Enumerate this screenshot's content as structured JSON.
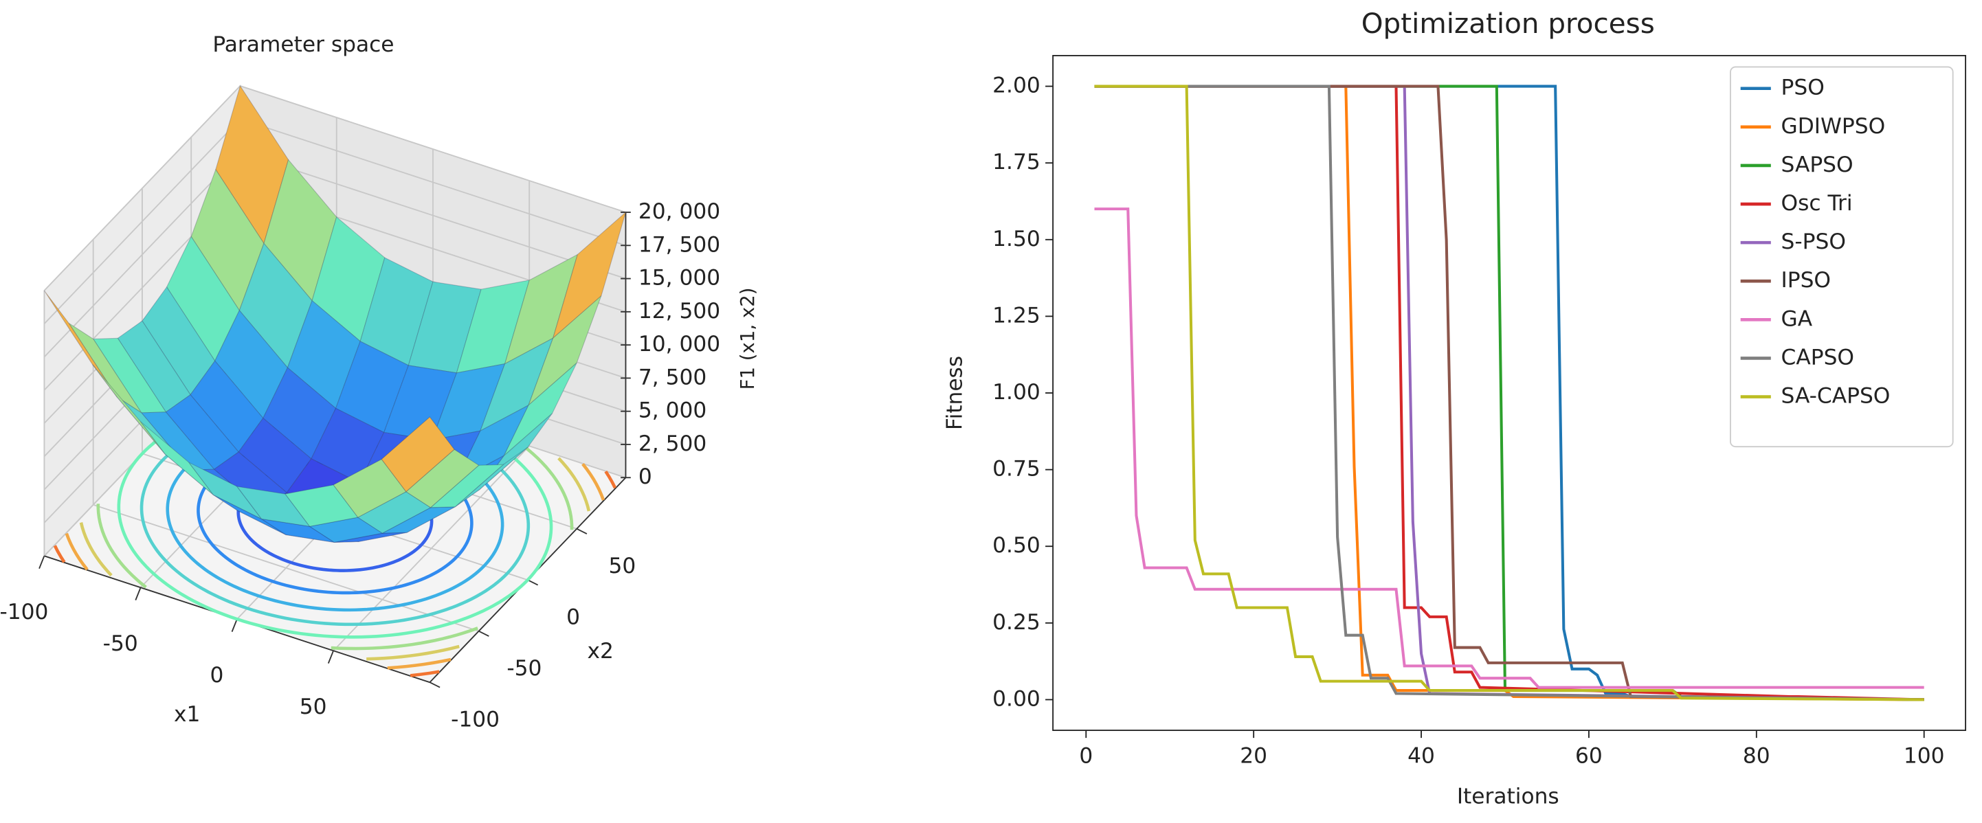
{
  "chart_data": [
    {
      "type": "surface",
      "title": "Parameter space",
      "xlabel": "x1",
      "ylabel": "x2",
      "zlabel": "F1 (x1, x2)",
      "x": [
        -100,
        -75,
        -50,
        -25,
        0,
        25,
        50,
        75,
        100
      ],
      "y": [
        -100,
        -75,
        -50,
        -25,
        0,
        25,
        50,
        75,
        100
      ],
      "z": [
        [
          20000,
          15625,
          12500,
          10625,
          10000,
          10625,
          12500,
          15625,
          20000
        ],
        [
          15625,
          11250,
          8125,
          6250,
          5625,
          6250,
          8125,
          11250,
          15625
        ],
        [
          12500,
          8125,
          5000,
          3125,
          2500,
          3125,
          5000,
          8125,
          12500
        ],
        [
          10625,
          6250,
          3125,
          1250,
          625,
          1250,
          3125,
          6250,
          10625
        ],
        [
          10000,
          5625,
          2500,
          625,
          0,
          625,
          2500,
          5625,
          10000
        ],
        [
          10625,
          6250,
          3125,
          1250,
          625,
          1250,
          3125,
          6250,
          10625
        ],
        [
          12500,
          8125,
          5000,
          3125,
          2500,
          3125,
          5000,
          8125,
          12500
        ],
        [
          15625,
          11250,
          8125,
          6250,
          5625,
          6250,
          8125,
          11250,
          15625
        ],
        [
          20000,
          15625,
          12500,
          10625,
          10000,
          10625,
          12500,
          15625,
          20000
        ]
      ],
      "contour_levels": [
        2000,
        4000,
        6000,
        8000,
        10000,
        12000,
        14000,
        16000,
        18000
      ],
      "xlim": [
        -100,
        100
      ],
      "ylim": [
        -100,
        100
      ],
      "zlim": [
        0,
        20000
      ],
      "xticks": [
        -100,
        -50,
        0,
        50
      ],
      "yticks": [
        -100,
        -50,
        0,
        50
      ],
      "zticks": [
        0,
        {
          "value": 2500,
          "label": "2, 500"
        },
        {
          "value": 5000,
          "label": "5, 000"
        },
        {
          "value": 7500,
          "label": "7, 500"
        },
        {
          "value": 10000,
          "label": "10, 000"
        },
        {
          "value": 12500,
          "label": "12, 500"
        },
        {
          "value": 15000,
          "label": "15, 000"
        },
        {
          "value": 17500,
          "label": "17, 500"
        },
        {
          "value": 20000,
          "label": "20, 000"
        }
      ],
      "colormap": [
        "#3a3ae6",
        "#2f9ff2",
        "#6ff2b8",
        "#f2c24e",
        "#f2401e"
      ],
      "grid": true
    },
    {
      "type": "line",
      "title": "Optimization process",
      "xlabel": "Iterations",
      "ylabel": "Fitness",
      "xlim": [
        -3.95,
        104.95
      ],
      "ylim": [
        -0.1,
        2.1
      ],
      "xticks": [
        0,
        20,
        40,
        60,
        80,
        100
      ],
      "yticks": [
        {
          "value": 0,
          "label": "0.00"
        },
        {
          "value": 0.25,
          "label": "0.25"
        },
        {
          "value": 0.5,
          "label": "0.50"
        },
        {
          "value": 0.75,
          "label": "0.75"
        },
        {
          "value": 1,
          "label": "1.00"
        },
        {
          "value": 1.25,
          "label": "1.25"
        },
        {
          "value": 1.5,
          "label": "1.50"
        },
        {
          "value": 1.75,
          "label": "1.75"
        },
        {
          "value": 2,
          "label": "2.00"
        }
      ],
      "legend": "upper right",
      "series": [
        {
          "name": "PSO",
          "color": "#1f77b4",
          "x": [
            1,
            56,
            57,
            58,
            60,
            61,
            62,
            64,
            65,
            100
          ],
          "values": [
            2,
            2,
            0.23,
            0.1,
            0.1,
            0.08,
            0.02,
            0.02,
            0.01,
            0
          ]
        },
        {
          "name": "GDIWPSO",
          "color": "#ff7f0e",
          "x": [
            1,
            31,
            32,
            33,
            36,
            37,
            50,
            51,
            100
          ],
          "values": [
            2,
            2,
            0.76,
            0.08,
            0.08,
            0.03,
            0.03,
            0.01,
            0
          ]
        },
        {
          "name": "SAPSO",
          "color": "#2ca02c",
          "x": [
            1,
            49,
            50,
            70,
            71,
            100
          ],
          "values": [
            2,
            2,
            0.03,
            0.03,
            0.01,
            0
          ]
        },
        {
          "name": "Osc Tri",
          "color": "#d62728",
          "x": [
            1,
            37,
            38,
            40,
            41,
            43,
            44,
            46,
            47,
            84,
            85,
            100
          ],
          "values": [
            2,
            2,
            0.3,
            0.3,
            0.27,
            0.27,
            0.09,
            0.09,
            0.04,
            0.01,
            0.01,
            0
          ]
        },
        {
          "name": "S-PSO",
          "color": "#9467bd",
          "x": [
            1,
            38,
            39,
            40,
            41,
            100
          ],
          "values": [
            2,
            2,
            0.58,
            0.15,
            0.02,
            0
          ]
        },
        {
          "name": "IPSO",
          "color": "#8c564b",
          "x": [
            1,
            42,
            43,
            44,
            47,
            48,
            64,
            65,
            100
          ],
          "values": [
            2,
            2,
            1.5,
            0.17,
            0.17,
            0.12,
            0.12,
            0.01,
            0
          ]
        },
        {
          "name": "GA",
          "color": "#e377c2",
          "x": [
            1,
            5,
            6,
            7,
            12,
            13,
            37,
            38,
            46,
            47,
            53,
            54,
            100
          ],
          "values": [
            1.6,
            1.6,
            0.6,
            0.43,
            0.43,
            0.36,
            0.36,
            0.11,
            0.11,
            0.07,
            0.07,
            0.04,
            0.04
          ]
        },
        {
          "name": "CAPSO",
          "color": "#7f7f7f",
          "x": [
            1,
            29,
            30,
            31,
            33,
            34,
            36,
            37,
            100
          ],
          "values": [
            2,
            2,
            0.53,
            0.21,
            0.21,
            0.07,
            0.07,
            0.02,
            0
          ]
        },
        {
          "name": "SA-CAPSO",
          "color": "#bcbd22",
          "x": [
            1,
            12,
            13,
            14,
            17,
            18,
            24,
            25,
            27,
            28,
            40,
            41,
            70,
            71,
            100
          ],
          "values": [
            2,
            2,
            0.52,
            0.41,
            0.41,
            0.3,
            0.3,
            0.14,
            0.14,
            0.06,
            0.06,
            0.03,
            0.03,
            0.005,
            0
          ]
        }
      ]
    }
  ]
}
